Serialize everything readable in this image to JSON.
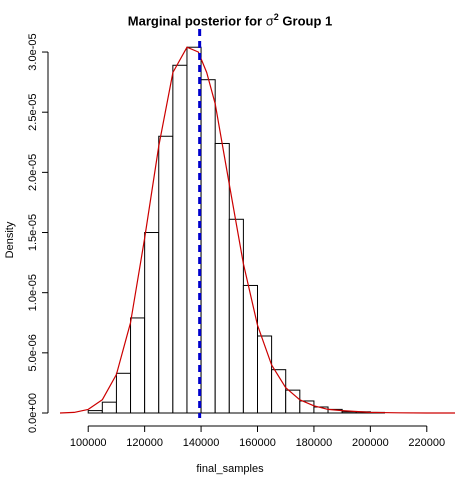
{
  "chart_data": {
    "type": "histogram",
    "title_prefix": "Marginal posterior for ",
    "title_symbol": "σ",
    "title_sup": "2",
    "title_suffix": " Group 1",
    "xlabel": "final_samples",
    "ylabel": "Density",
    "xlim": [
      90000,
      230000
    ],
    "ylim": [
      0,
      3.1e-05
    ],
    "x_ticks": [
      100000,
      120000,
      140000,
      160000,
      180000,
      200000,
      220000
    ],
    "x_tick_labels": [
      "100000",
      "120000",
      "140000",
      "160000",
      "180000",
      "200000",
      "220000"
    ],
    "y_ticks": [
      0,
      5e-06,
      1e-05,
      1.5e-05,
      2e-05,
      2.5e-05,
      3e-05
    ],
    "y_tick_labels": [
      "0.0e+00",
      "5.0e-06",
      "1.0e-05",
      "1.5e-05",
      "2.0e-05",
      "2.5e-05",
      "3.0e-05"
    ],
    "bin_width": 5000,
    "bins_start": [
      100000,
      105000,
      110000,
      115000,
      120000,
      125000,
      130000,
      135000,
      140000,
      145000,
      150000,
      155000,
      160000,
      165000,
      170000,
      175000,
      180000,
      185000,
      190000,
      195000,
      200000
    ],
    "densities": [
      2e-07,
      9e-07,
      3.3e-06,
      7.9e-06,
      1.5e-05,
      2.3e-05,
      2.89e-05,
      3.04e-05,
      2.77e-05,
      2.24e-05,
      1.61e-05,
      1.06e-05,
      6.4e-06,
      3.6e-06,
      1.9e-06,
      1e-06,
      5e-07,
      3e-07,
      1e-07,
      1e-07,
      5e-08
    ],
    "density_curve": {
      "color": "#cc0000",
      "x": [
        90000,
        95000,
        100000,
        105000,
        110000,
        115000,
        120000,
        125000,
        130000,
        135000,
        139000,
        142000,
        145000,
        150000,
        155000,
        160000,
        165000,
        170000,
        175000,
        180000,
        185000,
        190000,
        200000,
        210000,
        220000,
        230000
      ],
      "y": [
        0,
        5e-08,
        3e-07,
        1.1e-06,
        3.2e-06,
        7.5e-06,
        1.45e-05,
        2.22e-05,
        2.83e-05,
        3.04e-05,
        3e-05,
        2.83e-05,
        2.57e-05,
        1.9e-05,
        1.24e-05,
        7.3e-06,
        4e-06,
        2.1e-06,
        1.1e-06,
        6e-07,
        3e-07,
        2e-07,
        5e-08,
        2e-08,
        0.0,
        0.0
      ]
    },
    "vline": {
      "x": 139500,
      "color": "#0000cc",
      "style": "dashed"
    },
    "bar_fill": "#ffffff",
    "bar_stroke": "#000000",
    "grid": false,
    "legend": "none"
  }
}
